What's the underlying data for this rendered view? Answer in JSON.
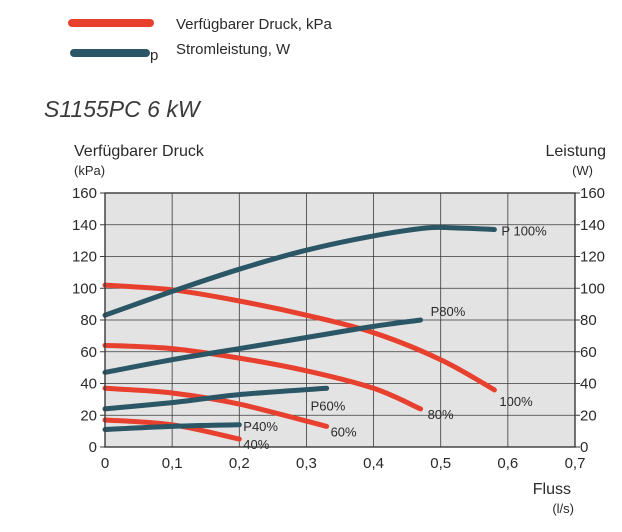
{
  "legend": {
    "pressure_label": "Verfügbarer Druck, kPa",
    "power_marker": "p",
    "power_label": "Stromleistung, W"
  },
  "colors": {
    "pressure": "#e8402e",
    "power": "#2b5665",
    "plot_bg": "#e3e3e3",
    "grid": "#3a3a3a"
  },
  "chart_data": {
    "type": "line",
    "title": "S1155PC 6 kW",
    "xlabel": "Fluss",
    "xunit": "(l/s)",
    "ylabel_left": "Verfügbarer Druck",
    "yunit_left": "(kPa)",
    "ylabel_right": "Leistung",
    "yunit_right": "(W)",
    "xlim": [
      0,
      0.7
    ],
    "ylim": [
      0,
      160
    ],
    "x_ticks": [
      "0",
      "0,1",
      "0,2",
      "0,3",
      "0,4",
      "0,5",
      "0,6",
      "0,7"
    ],
    "y_ticks": [
      "0",
      "20",
      "40",
      "60",
      "80",
      "100",
      "120",
      "140",
      "160"
    ],
    "grid": true,
    "series": [
      {
        "name": "100%",
        "kind": "pressure",
        "x": [
          0,
          0.1,
          0.2,
          0.3,
          0.4,
          0.5,
          0.58
        ],
        "y": [
          102,
          99,
          92,
          83,
          72,
          55,
          36
        ]
      },
      {
        "name": "80%",
        "kind": "pressure",
        "x": [
          0,
          0.1,
          0.2,
          0.3,
          0.4,
          0.47
        ],
        "y": [
          64,
          62,
          56,
          48,
          37,
          24
        ]
      },
      {
        "name": "60%",
        "kind": "pressure",
        "x": [
          0,
          0.1,
          0.2,
          0.33
        ],
        "y": [
          37,
          34,
          27,
          13
        ]
      },
      {
        "name": "40%",
        "kind": "pressure",
        "x": [
          0,
          0.1,
          0.2
        ],
        "y": [
          17,
          14,
          5
        ]
      },
      {
        "name": "P 100%",
        "kind": "power",
        "x": [
          0,
          0.1,
          0.2,
          0.3,
          0.4,
          0.48,
          0.52,
          0.58
        ],
        "y": [
          83,
          98,
          112,
          124,
          133,
          138,
          138,
          137
        ]
      },
      {
        "name": "P80%",
        "kind": "power",
        "x": [
          0,
          0.1,
          0.2,
          0.3,
          0.4,
          0.47
        ],
        "y": [
          47,
          55,
          62,
          69,
          76,
          80
        ]
      },
      {
        "name": "P60%",
        "kind": "power",
        "x": [
          0,
          0.1,
          0.2,
          0.33
        ],
        "y": [
          24,
          28,
          33,
          37
        ]
      },
      {
        "name": "P40%",
        "kind": "power",
        "x": [
          0,
          0.1,
          0.2
        ],
        "y": [
          11,
          13,
          14
        ]
      }
    ]
  }
}
